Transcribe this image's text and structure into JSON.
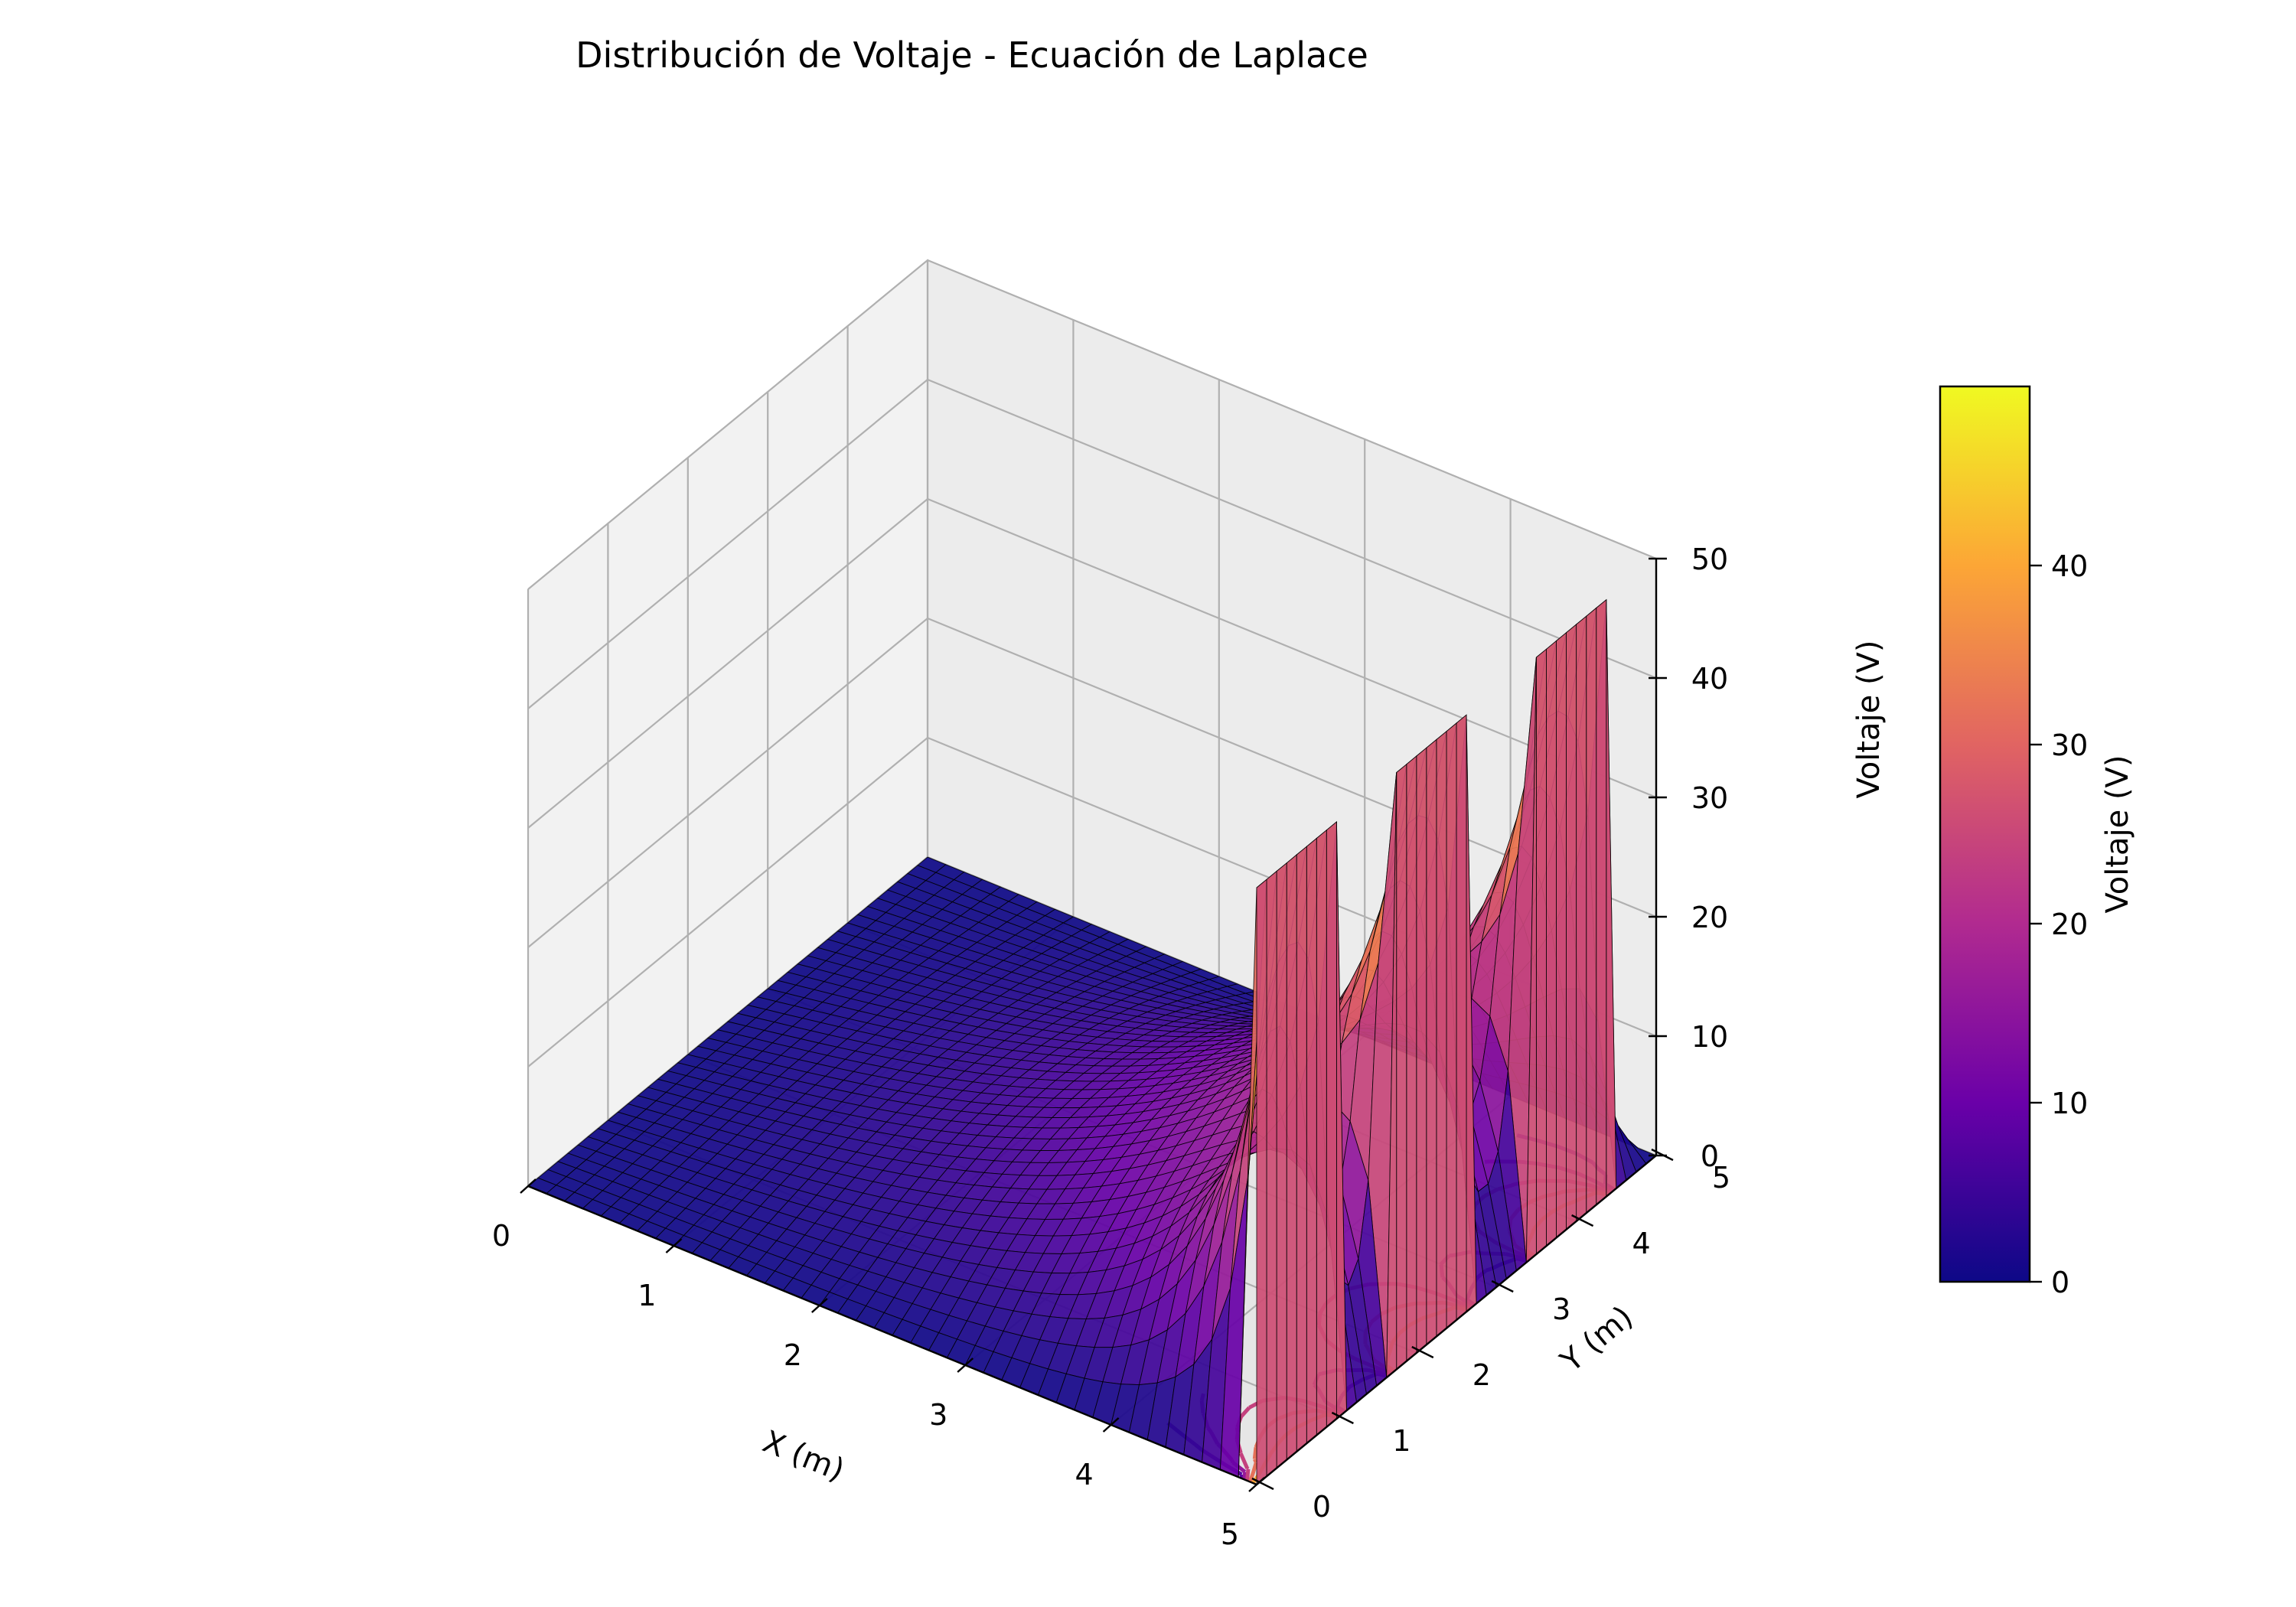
{
  "chart_data": {
    "type": "surface3d",
    "title": "Distribución de Voltaje - Ecuación de Laplace",
    "xlabel": "X (m)",
    "ylabel": "Y (m)",
    "zlabel": "Voltaje (V)",
    "colorbar_label": "Voltaje (V)",
    "colormap": "plasma",
    "colormap_stops": [
      "#0d0887",
      "#6a00a8",
      "#b12a90",
      "#e16462",
      "#fca636",
      "#f0f921"
    ],
    "xlim": [
      0,
      5
    ],
    "ylim": [
      0,
      5
    ],
    "zlim": [
      0,
      50
    ],
    "x_ticks": [
      "0",
      "1",
      "2",
      "3",
      "4",
      "5"
    ],
    "y_ticks": [
      "0",
      "1",
      "2",
      "3",
      "4",
      "5"
    ],
    "z_ticks": [
      "0",
      "10",
      "20",
      "30",
      "40",
      "50"
    ],
    "colorbar_ticks": [
      "0",
      "10",
      "20",
      "30",
      "40"
    ],
    "colorbar_range": [
      0,
      50
    ],
    "boundary": {
      "voltage": 50,
      "edge": "x = 5",
      "segments_y": [
        [
          0.0,
          1.0
        ],
        [
          1.7,
          2.7
        ],
        [
          3.4,
          4.4
        ]
      ]
    },
    "grid": true
  }
}
